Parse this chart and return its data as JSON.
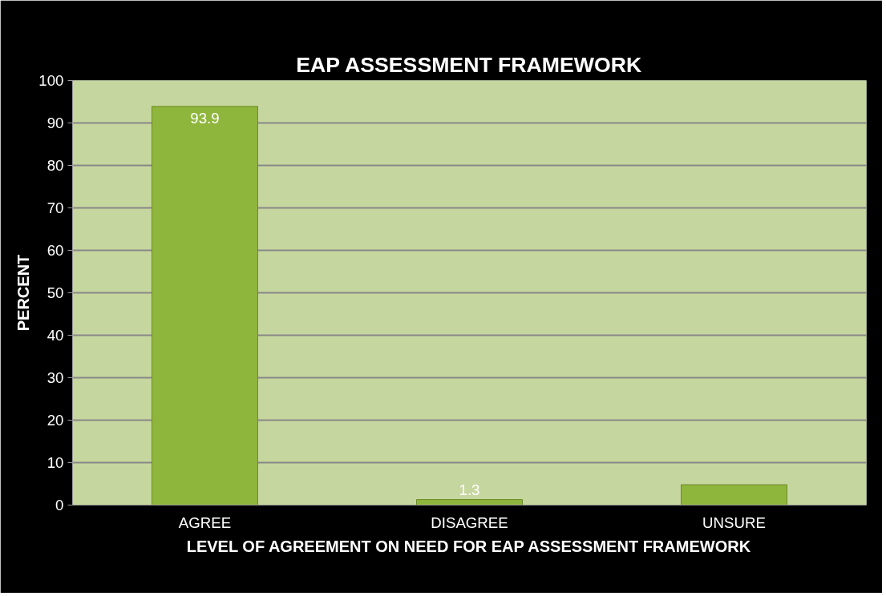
{
  "chart_data": {
    "type": "bar",
    "title": "EAP ASSESSMENT FRAMEWORK",
    "xlabel": "LEVEL OF AGREEMENT ON NEED FOR EAP ASSESSMENT FRAMEWORK",
    "ylabel": "PERCENT",
    "categories": [
      "AGREE",
      "DISAGREE",
      "UNSURE"
    ],
    "values": [
      93.9,
      1.3,
      4.8
    ],
    "value_labels": [
      "93.9",
      "1.3",
      null
    ],
    "color": "#8fb63c",
    "ylim": [
      0,
      100
    ],
    "yticks": [
      0,
      10,
      20,
      30,
      40,
      50,
      60,
      70,
      80,
      90,
      100
    ],
    "grid": "y"
  }
}
